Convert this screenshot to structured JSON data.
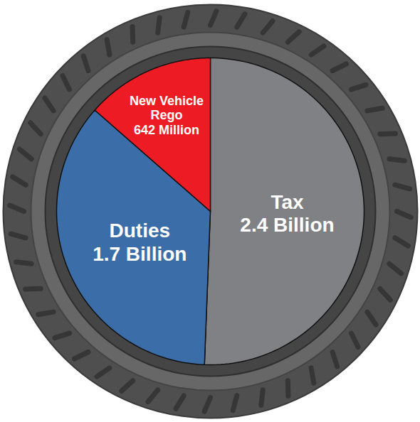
{
  "chart_data": {
    "type": "pie",
    "categories": [
      "Tax",
      "Duties",
      "New Vehicle Rego"
    ],
    "values": [
      2400,
      1700,
      642
    ],
    "value_labels": [
      "2.4 Billion",
      "1.7 Billion",
      "642 Million"
    ],
    "colors": [
      "#808184",
      "#3b6ea8",
      "#ed1c24"
    ],
    "data_labels": true
  }
}
